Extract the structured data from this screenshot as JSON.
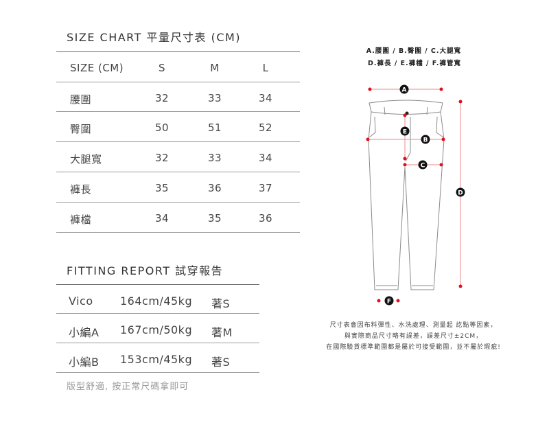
{
  "size_chart": {
    "title": "SIZE CHART 平量尺寸表 (CM)",
    "header": [
      "SIZE (CM)",
      "S",
      "M",
      "L"
    ],
    "rows": [
      [
        "腰圍",
        "32",
        "33",
        "34"
      ],
      [
        "臀圍",
        "50",
        "51",
        "52"
      ],
      [
        "大腿寬",
        "32",
        "33",
        "34"
      ],
      [
        "褲長",
        "35",
        "36",
        "37"
      ],
      [
        "褲檔",
        "34",
        "35",
        "36"
      ]
    ]
  },
  "fitting_report": {
    "title": "FITTING REPORT 試穿報告",
    "rows": [
      [
        "Vico",
        "164cm/45kg",
        "著S"
      ],
      [
        "小編A",
        "167cm/50kg",
        "著M"
      ],
      [
        "小編B",
        "153cm/45kg",
        "著S"
      ]
    ],
    "footnote": "版型舒適, 按正常尺碼拿即可"
  },
  "diagram": {
    "legend": [
      "A.腰圍 / B.臀圍 / C.大腿寬",
      "D.褲長 / E.褲檔 / F.褲管寬"
    ],
    "markers": [
      "A",
      "B",
      "C",
      "D",
      "E",
      "F"
    ],
    "marker_color": "#e0101a"
  },
  "note": [
    "尺寸表會因布料彈性、水洗處理、測量起 訖點等因素，",
    "與實際商品尺寸略有誤差，誤差尺寸±2CM，",
    "在國際驗貨標準範圍都是屬於可接受範圍，並不屬於瑕疵!"
  ]
}
